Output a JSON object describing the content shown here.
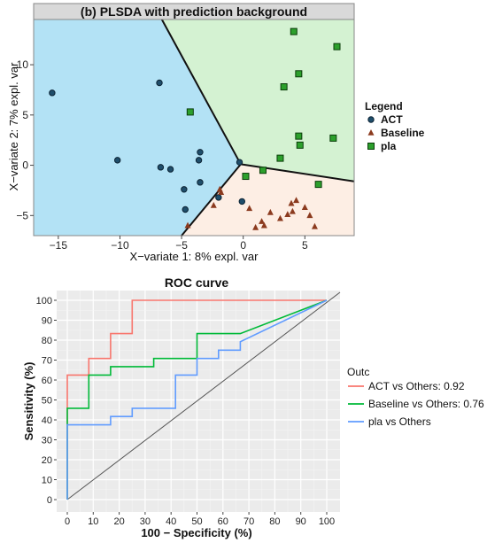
{
  "chart_data": [
    {
      "type": "scatter",
      "title": "(b) PLSDA with prediction background",
      "xlabel": "X−variate 1: 8% expl. var",
      "ylabel": "X−variate 2: 7% expl. var",
      "xlim": [
        -17,
        9
      ],
      "ylim": [
        -7,
        14.5
      ],
      "xticks": [
        -15,
        -10,
        -5,
        0,
        5
      ],
      "yticks": [
        -5,
        0,
        5,
        10
      ],
      "legend": {
        "title": "Legend",
        "position": "right",
        "entries": [
          "ACT",
          "Baseline",
          "pla"
        ]
      },
      "regions": [
        {
          "name": "ACT",
          "color": "#b3e2f5",
          "polygon": [
            [
              -17,
              14.5
            ],
            [
              -6.6,
              14.5
            ],
            [
              -0.2,
              0.1
            ],
            [
              -5.0,
              -7
            ],
            [
              -17,
              -7
            ]
          ]
        },
        {
          "name": "pla",
          "color": "#d4f2d2",
          "polygon": [
            [
              -6.6,
              14.5
            ],
            [
              9,
              14.5
            ],
            [
              9,
              -1.6
            ],
            [
              -0.2,
              0.1
            ]
          ]
        },
        {
          "name": "Baseline",
          "color": "#fdeee4",
          "polygon": [
            [
              -0.2,
              0.1
            ],
            [
              9,
              -1.6
            ],
            [
              9,
              -7
            ],
            [
              -5.0,
              -7
            ]
          ]
        }
      ],
      "boundaries": [
        [
          [
            -6.6,
            14.5
          ],
          [
            -0.2,
            0.1
          ]
        ],
        [
          [
            -0.2,
            0.1
          ],
          [
            -5.0,
            -7
          ]
        ],
        [
          [
            -0.2,
            0.1
          ],
          [
            9,
            -1.6
          ]
        ]
      ],
      "series": [
        {
          "name": "ACT",
          "marker": "circle",
          "color": "#1f4e6b",
          "points": [
            [
              -15.5,
              7.2
            ],
            [
              -10.2,
              0.5
            ],
            [
              -6.8,
              8.2
            ],
            [
              -6.7,
              -0.2
            ],
            [
              -5.9,
              -0.4
            ],
            [
              -4.8,
              -2.4
            ],
            [
              -4.7,
              -4.4
            ],
            [
              -3.5,
              1.3
            ],
            [
              -3.6,
              0.5
            ],
            [
              -3.5,
              -1.7
            ],
            [
              -2.0,
              -3.2
            ],
            [
              -0.3,
              0.3
            ],
            [
              -0.1,
              -3.6
            ]
          ]
        },
        {
          "name": "Baseline",
          "marker": "triangle",
          "color": "#8b3a1e",
          "points": [
            [
              -4.5,
              -6.0
            ],
            [
              -2.4,
              -4.0
            ],
            [
              -1.9,
              -2.4
            ],
            [
              -1.8,
              -2.7
            ],
            [
              0.5,
              -4.3
            ],
            [
              1.0,
              -6.2
            ],
            [
              1.5,
              -5.6
            ],
            [
              1.7,
              -6.0
            ],
            [
              2.2,
              -4.7
            ],
            [
              3.0,
              -5.3
            ],
            [
              3.6,
              -4.9
            ],
            [
              3.9,
              -3.8
            ],
            [
              4.0,
              -4.6
            ],
            [
              4.3,
              -3.5
            ],
            [
              5.0,
              -4.2
            ],
            [
              5.4,
              -5.0
            ],
            [
              5.8,
              -6.1
            ]
          ]
        },
        {
          "name": "pla",
          "marker": "square",
          "color": "#2ca02c",
          "points": [
            [
              -4.3,
              5.3
            ],
            [
              0.2,
              -1.1
            ],
            [
              1.6,
              -0.5
            ],
            [
              3.0,
              0.7
            ],
            [
              3.3,
              7.8
            ],
            [
              4.1,
              13.3
            ],
            [
              4.5,
              9.1
            ],
            [
              4.5,
              2.9
            ],
            [
              4.6,
              2.0
            ],
            [
              6.1,
              -1.9
            ],
            [
              7.3,
              2.7
            ],
            [
              7.6,
              11.8
            ]
          ]
        }
      ]
    },
    {
      "type": "line",
      "title": "ROC curve",
      "xlabel": "100 − Specificity (%)",
      "ylabel": "Sensitivity (%)",
      "xlim": [
        0,
        100
      ],
      "ylim": [
        0,
        100
      ],
      "xticks": [
        0,
        10,
        20,
        30,
        40,
        50,
        60,
        70,
        80,
        90,
        100
      ],
      "yticks": [
        0,
        10,
        20,
        30,
        40,
        50,
        60,
        70,
        80,
        90,
        100
      ],
      "grid": true,
      "legend": {
        "title": "Outc",
        "position": "right"
      },
      "series": [
        {
          "name": "ACT vs Others: 0.92",
          "color": "#f8766d",
          "points": [
            [
              0,
              0
            ],
            [
              0,
              62.5
            ],
            [
              8.3,
              62.5
            ],
            [
              8.3,
              70.8
            ],
            [
              16.7,
              70.8
            ],
            [
              16.7,
              83.3
            ],
            [
              25,
              83.3
            ],
            [
              25,
              100
            ],
            [
              100,
              100
            ]
          ]
        },
        {
          "name": "Baseline vs Others: 0.76",
          "color": "#00ba38",
          "points": [
            [
              0,
              0
            ],
            [
              0,
              45.8
            ],
            [
              8.3,
              45.8
            ],
            [
              8.3,
              62.5
            ],
            [
              16.7,
              62.5
            ],
            [
              16.7,
              66.7
            ],
            [
              33.3,
              66.7
            ],
            [
              33.3,
              70.8
            ],
            [
              50,
              70.8
            ],
            [
              50,
              83.3
            ],
            [
              66.7,
              83.3
            ],
            [
              66.7,
              83.3
            ],
            [
              100,
              100
            ]
          ]
        },
        {
          "name": "pla vs Others",
          "color": "#619cff",
          "points": [
            [
              0,
              0
            ],
            [
              0,
              37.5
            ],
            [
              16.7,
              37.5
            ],
            [
              16.7,
              41.7
            ],
            [
              25,
              41.7
            ],
            [
              25,
              45.8
            ],
            [
              41.7,
              45.8
            ],
            [
              41.7,
              62.5
            ],
            [
              50,
              62.5
            ],
            [
              50,
              70.8
            ],
            [
              58.3,
              70.8
            ],
            [
              58.3,
              75
            ],
            [
              66.7,
              75
            ],
            [
              66.7,
              79.2
            ],
            [
              100,
              100
            ]
          ]
        }
      ],
      "reference_line": {
        "from": [
          0,
          0
        ],
        "to": [
          100,
          100
        ],
        "color": "#555555"
      }
    }
  ]
}
